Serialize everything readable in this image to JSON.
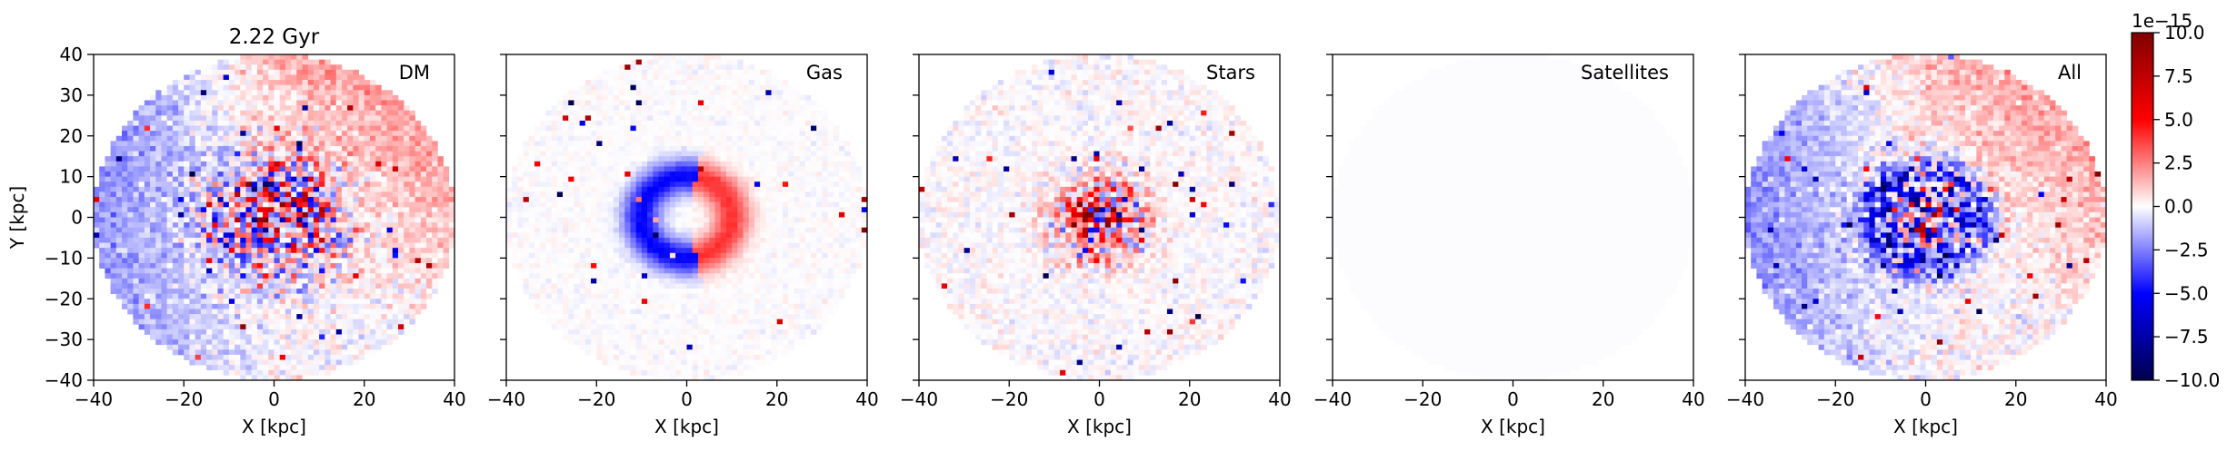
{
  "figure": {
    "time_label": "2.22 Gyr",
    "colorbar": {
      "offset_label": "1e−15",
      "ticks": [
        10.0,
        7.5,
        5.0,
        2.5,
        0.0,
        -2.5,
        -5.0,
        -7.5,
        -10.0
      ],
      "tick_labels": [
        "10.0",
        "7.5",
        "5.0",
        "2.5",
        "0.0",
        "−2.5",
        "−5.0",
        "−7.5",
        "−10.0"
      ],
      "range": [
        -10.0,
        10.0
      ],
      "colormap": "seismic",
      "colors": {
        "min": "#00004c",
        "low": "#0000ff",
        "mid": "#ffffff",
        "high": "#ff0000",
        "max": "#800000"
      }
    }
  },
  "chart_data": [
    {
      "type": "heatmap",
      "label": "DM",
      "title": "2.22 Gyr",
      "xlabel": "X [kpc]",
      "ylabel": "Y [kpc]",
      "xlim": [
        -40,
        40
      ],
      "ylim": [
        -40,
        40
      ],
      "x_ticks": [
        -40,
        -20,
        0,
        20,
        40
      ],
      "x_tick_labels": [
        "−40",
        "−20",
        "0",
        "20",
        "40"
      ],
      "y_ticks": [
        40,
        30,
        20,
        10,
        0,
        -10,
        -20,
        -30,
        -40
      ],
      "y_tick_labels": [
        "40",
        "30",
        "20",
        "10",
        "0",
        "−10",
        "−20",
        "−30",
        "−40"
      ],
      "data_radius_kpc": 40,
      "features": {
        "center_spread_kpc": 11,
        "center_peak_amplitude": 10,
        "dipole": {
          "left": -1.6,
          "upper_right": 1.8
        },
        "noise": 1.2
      },
      "grid": false
    },
    {
      "type": "heatmap",
      "label": "Gas",
      "xlabel": "X [kpc]",
      "ylabel": "",
      "xlim": [
        -40,
        40
      ],
      "ylim": [
        -40,
        40
      ],
      "x_ticks": [
        -40,
        -20,
        0,
        20,
        40
      ],
      "x_tick_labels": [
        "−40",
        "−20",
        "0",
        "20",
        "40"
      ],
      "y_ticks": [
        40,
        30,
        20,
        10,
        0,
        -10,
        -20,
        -30,
        -40
      ],
      "data_radius_kpc": 40,
      "features": {
        "ring_radius_kpc": 10,
        "ring_width_kpc": 3,
        "ring_pattern": {
          "negative_left_top": -5,
          "positive_right": 4
        },
        "noise": 0.4
      },
      "grid": false
    },
    {
      "type": "heatmap",
      "label": "Stars",
      "xlabel": "X [kpc]",
      "ylabel": "",
      "xlim": [
        -40,
        40
      ],
      "ylim": [
        -40,
        40
      ],
      "x_ticks": [
        -40,
        -20,
        0,
        20,
        40
      ],
      "x_tick_labels": [
        "−40",
        "−20",
        "0",
        "20",
        "40"
      ],
      "y_ticks": [
        40,
        30,
        20,
        10,
        0,
        -10,
        -20,
        -30,
        -40
      ],
      "data_radius_kpc": 40,
      "features": {
        "center_spread_kpc": 7,
        "center_peak_amplitude": 10,
        "bias": 2.5,
        "noise": 0.8
      },
      "grid": false
    },
    {
      "type": "heatmap",
      "label": "Satellites",
      "xlabel": "X [kpc]",
      "ylabel": "",
      "xlim": [
        -40,
        40
      ],
      "ylim": [
        -40,
        40
      ],
      "x_ticks": [
        -40,
        -20,
        0,
        20,
        40
      ],
      "x_tick_labels": [
        "−40",
        "−20",
        "0",
        "20",
        "40"
      ],
      "y_ticks": [
        40,
        30,
        20,
        10,
        0,
        -10,
        -20,
        -30,
        -40
      ],
      "data_radius_kpc": 40,
      "features": {
        "uniform_value": -0.05
      },
      "grid": false
    },
    {
      "type": "heatmap",
      "label": "All",
      "xlabel": "X [kpc]",
      "ylabel": "",
      "xlim": [
        -40,
        40
      ],
      "ylim": [
        -40,
        40
      ],
      "x_ticks": [
        -40,
        -20,
        0,
        20,
        40
      ],
      "x_tick_labels": [
        "−40",
        "−20",
        "0",
        "20",
        "40"
      ],
      "y_ticks": [
        40,
        30,
        20,
        10,
        0,
        -10,
        -20,
        -30,
        -40
      ],
      "data_radius_kpc": 40,
      "features": {
        "center_spread_kpc": 9,
        "center_peak_amplitude": 10,
        "ring_radius_kpc": 11,
        "ring_amplitude": -4,
        "dipole": {
          "left": -1.6,
          "upper_right": 1.8
        },
        "noise": 1.2
      },
      "grid": false
    }
  ]
}
